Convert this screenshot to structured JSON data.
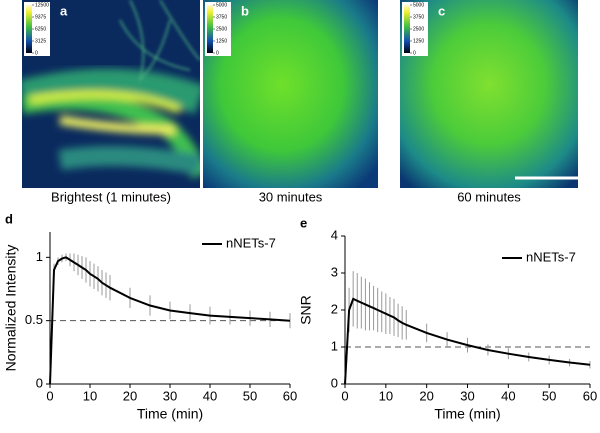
{
  "images": [
    {
      "label": "a",
      "caption": "Brightest (1 minutes)",
      "colorbar_ticks": [
        12500,
        9375,
        6250,
        3125,
        0
      ]
    },
    {
      "label": "b",
      "caption": "30 minutes",
      "colorbar_ticks": [
        5000,
        3750,
        2500,
        1250,
        0
      ]
    },
    {
      "label": "c",
      "caption": "60 minutes",
      "colorbar_ticks": [
        5000,
        3750,
        2500,
        1250,
        0
      ]
    }
  ],
  "chart_data": [
    {
      "type": "line",
      "panel": "d",
      "xlabel": "Time (min)",
      "ylabel": "Normalized Intensity",
      "xlim": [
        0,
        60
      ],
      "xticks": [
        0,
        10,
        20,
        30,
        40,
        50,
        60
      ],
      "ylim": [
        0,
        1.2
      ],
      "yticks": [
        0,
        0.5,
        1
      ],
      "reference_line": 0.5,
      "legend": "upper right",
      "series": [
        {
          "name": "nNETs-7",
          "color": "#000000",
          "x": [
            0,
            1,
            2,
            3,
            4,
            5,
            6,
            7,
            8,
            9,
            10,
            11,
            12,
            13,
            14,
            15,
            20,
            25,
            30,
            35,
            40,
            45,
            50,
            55,
            60
          ],
          "values": [
            0,
            0.9,
            0.97,
            0.99,
            1.0,
            0.98,
            0.96,
            0.94,
            0.92,
            0.9,
            0.87,
            0.85,
            0.83,
            0.8,
            0.78,
            0.76,
            0.68,
            0.62,
            0.58,
            0.56,
            0.54,
            0.53,
            0.52,
            0.51,
            0.5
          ],
          "errors": [
            0,
            0.05,
            0.03,
            0.03,
            0.03,
            0.05,
            0.07,
            0.08,
            0.09,
            0.1,
            0.1,
            0.1,
            0.1,
            0.1,
            0.1,
            0.1,
            0.08,
            0.08,
            0.07,
            0.07,
            0.07,
            0.06,
            0.06,
            0.06,
            0.06
          ]
        }
      ]
    },
    {
      "type": "line",
      "panel": "e",
      "xlabel": "Time (min)",
      "ylabel": "SNR",
      "xlim": [
        0,
        60
      ],
      "xticks": [
        0,
        10,
        20,
        30,
        40,
        50,
        60
      ],
      "ylim": [
        0,
        4
      ],
      "yticks": [
        0,
        1,
        2,
        3,
        4
      ],
      "reference_line": 1,
      "legend": "upper right",
      "series": [
        {
          "name": "nNETs-7",
          "color": "#000000",
          "x": [
            0,
            1,
            2,
            3,
            4,
            5,
            6,
            7,
            8,
            9,
            10,
            11,
            12,
            13,
            14,
            15,
            20,
            25,
            30,
            35,
            40,
            45,
            50,
            55,
            60
          ],
          "values": [
            0,
            2.0,
            2.3,
            2.25,
            2.2,
            2.15,
            2.1,
            2.05,
            2.0,
            1.95,
            1.9,
            1.85,
            1.8,
            1.72,
            1.65,
            1.6,
            1.38,
            1.2,
            1.05,
            0.92,
            0.82,
            0.73,
            0.65,
            0.58,
            0.52
          ],
          "errors": [
            0,
            0.6,
            0.75,
            0.75,
            0.7,
            0.7,
            0.65,
            0.6,
            0.6,
            0.55,
            0.55,
            0.5,
            0.5,
            0.45,
            0.45,
            0.4,
            0.25,
            0.2,
            0.2,
            0.15,
            0.15,
            0.12,
            0.12,
            0.1,
            0.1
          ]
        }
      ]
    }
  ]
}
